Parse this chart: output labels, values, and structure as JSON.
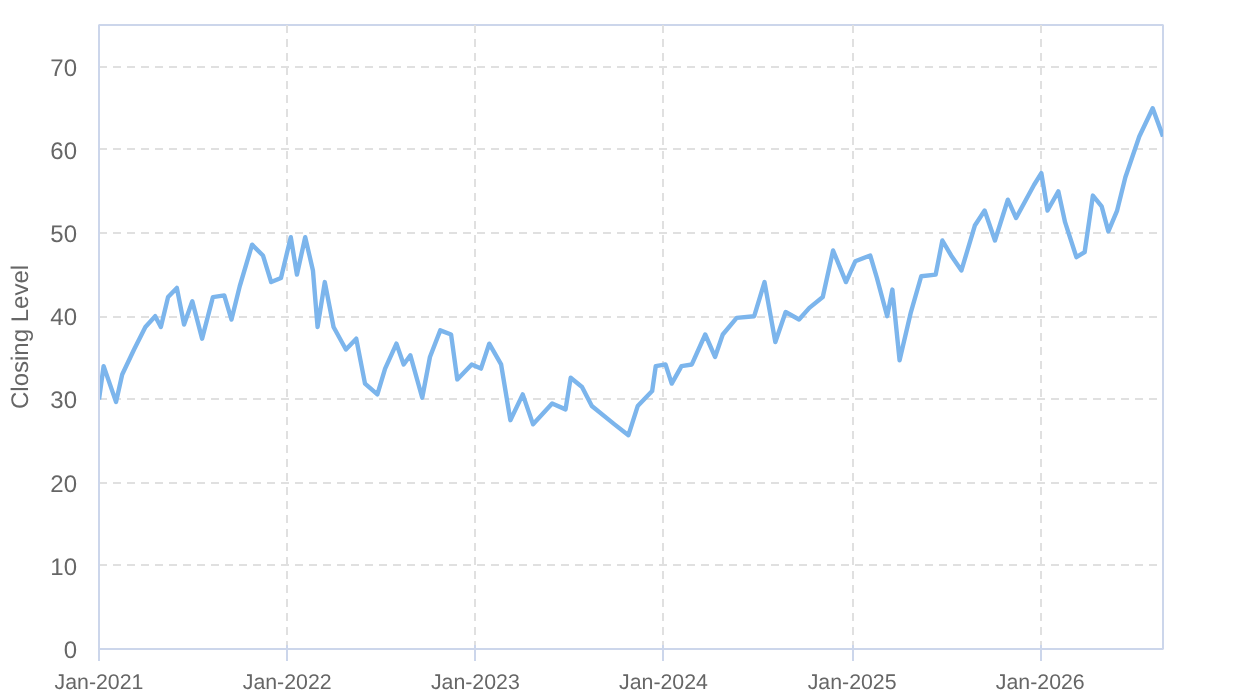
{
  "chart_data": {
    "type": "line",
    "ylabel": "Closing Level",
    "x": [
      "2021-01-01",
      "2021-01-10",
      "2021-02-03",
      "2021-02-15",
      "2021-03-10",
      "2021-04-01",
      "2021-04-20",
      "2021-05-01",
      "2021-05-15",
      "2021-06-01",
      "2021-06-15",
      "2021-07-01",
      "2021-07-20",
      "2021-08-10",
      "2021-09-01",
      "2021-09-15",
      "2021-10-01",
      "2021-10-25",
      "2021-11-15",
      "2021-12-01",
      "2021-12-20",
      "2022-01-08",
      "2022-01-20",
      "2022-02-05",
      "2022-02-20",
      "2022-03-01",
      "2022-03-15",
      "2022-04-01",
      "2022-04-25",
      "2022-05-15",
      "2022-06-01",
      "2022-06-25",
      "2022-07-10",
      "2022-08-01",
      "2022-08-15",
      "2022-08-28",
      "2022-09-20",
      "2022-10-05",
      "2022-10-25",
      "2022-11-15",
      "2022-11-27",
      "2022-12-25",
      "2023-01-12",
      "2023-01-28",
      "2023-02-20",
      "2023-03-10",
      "2023-04-03",
      "2023-04-23",
      "2023-05-30",
      "2023-06-25",
      "2023-07-05",
      "2023-07-27",
      "2023-08-15",
      "2023-09-28",
      "2023-10-25",
      "2023-11-12",
      "2023-12-10",
      "2023-12-17",
      "2024-01-05",
      "2024-01-17",
      "2024-02-05",
      "2024-02-25",
      "2024-03-22",
      "2024-04-10",
      "2024-04-25",
      "2024-05-22",
      "2024-06-25",
      "2024-07-15",
      "2024-08-05",
      "2024-08-25",
      "2024-09-20",
      "2024-10-10",
      "2024-11-05",
      "2024-11-25",
      "2024-12-20",
      "2025-01-07",
      "2025-02-05",
      "2025-02-18",
      "2025-03-10",
      "2025-03-20",
      "2025-04-03",
      "2025-04-25",
      "2025-05-15",
      "2025-06-12",
      "2025-06-25",
      "2025-07-12",
      "2025-08-01",
      "2025-08-27",
      "2025-09-15",
      "2025-10-05",
      "2025-10-30",
      "2025-11-15",
      "2025-12-20",
      "2026-01-03",
      "2026-01-15",
      "2026-02-05",
      "2026-02-18",
      "2026-03-12",
      "2026-03-28",
      "2026-04-13",
      "2026-04-30",
      "2026-05-13",
      "2026-05-30",
      "2026-06-15",
      "2026-07-12",
      "2026-08-07",
      "2026-08-27"
    ],
    "series": [
      {
        "color": "#7cb5ec",
        "values": [
          30,
          34,
          29.7,
          33,
          36,
          38.7,
          40,
          38.7,
          42.3,
          43.4,
          39,
          41.8,
          37.3,
          42.3,
          42.5,
          39.6,
          43.6,
          48.6,
          47.3,
          44.1,
          44.6,
          49.5,
          45,
          49.5,
          45.5,
          38.7,
          44.1,
          38.7,
          36,
          37.3,
          31.9,
          30.6,
          33.7,
          36.7,
          34.2,
          35.3,
          30.2,
          35.1,
          38.3,
          37.8,
          32.4,
          34.2,
          33.7,
          36.7,
          34.2,
          27.5,
          30.6,
          27,
          29.5,
          28.8,
          32.6,
          31.5,
          29.2,
          27,
          25.7,
          29.2,
          31,
          34,
          34.2,
          31.9,
          34,
          34.2,
          37.8,
          35.1,
          37.8,
          39.8,
          40,
          44.1,
          36.9,
          40.5,
          39.6,
          41,
          42.3,
          47.9,
          44.1,
          46.6,
          47.3,
          44.6,
          40,
          43.2,
          34.7,
          40.5,
          44.8,
          45,
          49.1,
          47.3,
          45.5,
          50.9,
          52.7,
          49.1,
          54,
          51.8,
          55.8,
          57.2,
          52.7,
          55,
          51.3,
          47.1,
          47.7,
          54.5,
          53.2,
          50.2,
          52.7,
          56.7,
          61.6,
          65,
          61.6
        ]
      }
    ],
    "xlim": [
      "2021-01-01",
      "2026-08-27"
    ],
    "xticks": [
      {
        "value": "2021-01-01",
        "label": "Jan-2021"
      },
      {
        "value": "2022-01-01",
        "label": "Jan-2022"
      },
      {
        "value": "2023-01-01",
        "label": "Jan-2023"
      },
      {
        "value": "2024-01-01",
        "label": "Jan-2024"
      },
      {
        "value": "2025-01-01",
        "label": "Jan-2025"
      },
      {
        "value": "2026-01-01",
        "label": "Jan-2026"
      }
    ],
    "ylim": [
      0,
      75
    ],
    "yticks": [
      0,
      10,
      20,
      30,
      40,
      50,
      60,
      70
    ],
    "grid": true,
    "marker": "none",
    "line_style": "solid"
  }
}
